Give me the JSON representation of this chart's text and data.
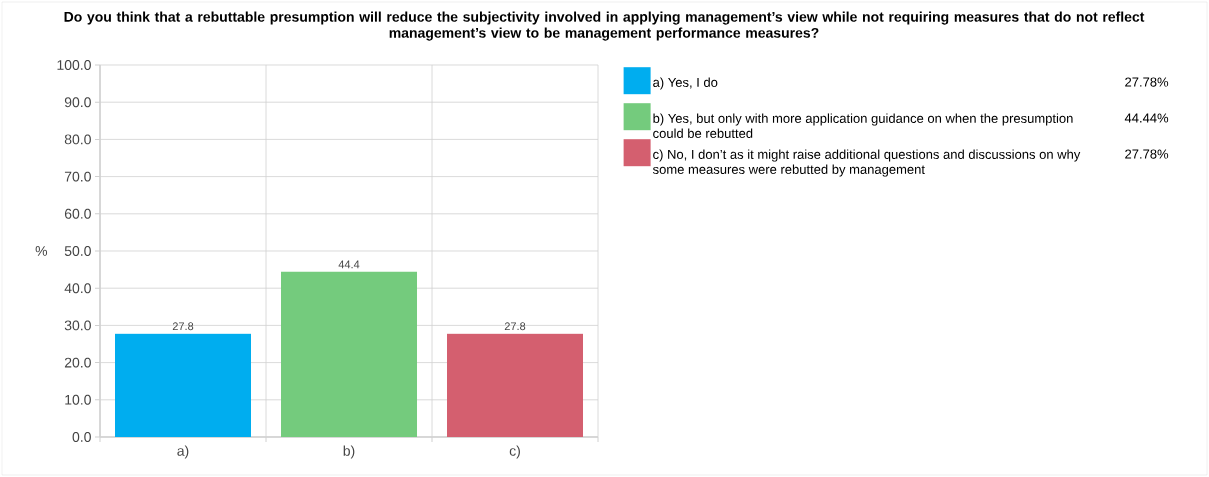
{
  "chart_data": {
    "type": "bar",
    "title": "Do you think that a rebuttable presumption will reduce the subjectivity involved in applying management’s view while not requiring measures that do not reflect management’s view to be management performance measures?",
    "ylabel": "%",
    "categories": [
      "a)",
      "b)",
      "c)"
    ],
    "series": [
      {
        "name": "a) Yes, I do",
        "color": "#00adef",
        "values": [
          27.78,
          null,
          null
        ],
        "value_labels": [
          "27.8",
          null,
          null
        ]
      },
      {
        "name": "b) Yes, but only with more application guidance on when the presumption could be rebutted",
        "color": "#74cb7d",
        "values": [
          null,
          44.44,
          null
        ],
        "value_labels": [
          null,
          "44.4",
          null
        ]
      },
      {
        "name": "c) No, I don’t as it might raise additional questions and discussions on why some measures were rebutted by management",
        "color": "#d45f6f",
        "values": [
          null,
          null,
          27.78
        ],
        "value_labels": [
          null,
          null,
          "27.8"
        ]
      }
    ],
    "annotations": [
      "27.78%",
      "44.44%",
      "27.78%"
    ],
    "ylim": [
      0,
      100
    ],
    "yticks": [
      {
        "value": 0,
        "label": "0.0"
      },
      {
        "value": 10,
        "label": "10.0"
      },
      {
        "value": 20,
        "label": "20.0"
      },
      {
        "value": 30,
        "label": "30.0"
      },
      {
        "value": 40,
        "label": "40.0"
      },
      {
        "value": 50,
        "label": "50.0"
      },
      {
        "value": 60,
        "label": "60.0"
      },
      {
        "value": 70,
        "label": "70.0"
      },
      {
        "value": 80,
        "label": "80.0"
      },
      {
        "value": 90,
        "label": "90.0"
      },
      {
        "value": 100,
        "label": "100.0"
      }
    ],
    "grid": true,
    "legend": "right"
  }
}
